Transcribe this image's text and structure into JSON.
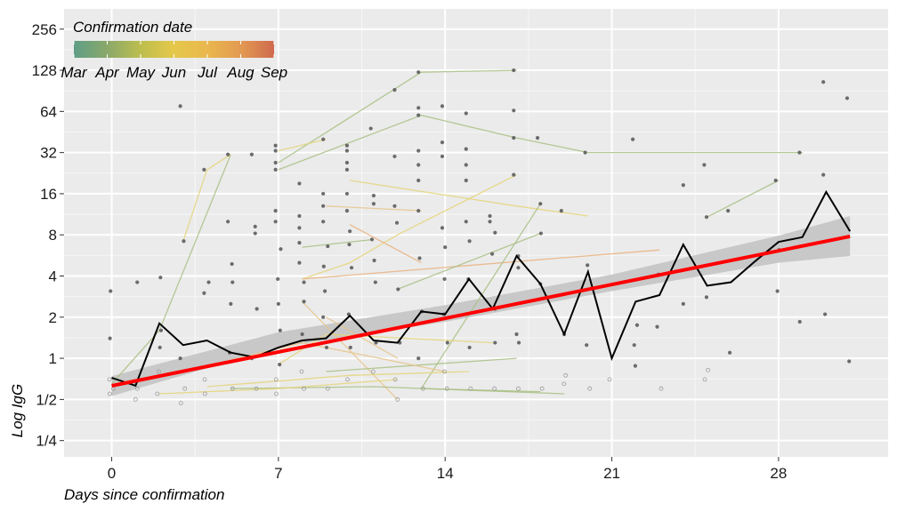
{
  "chart_data": {
    "type": "line",
    "title": "",
    "xlabel": "Days since confirmation",
    "ylabel": "Log IgG",
    "x_ticks": [
      0,
      7,
      14,
      21,
      28
    ],
    "x_tick_labels": [
      "0",
      "7",
      "14",
      "21",
      "28"
    ],
    "xlim": [
      -2,
      32.6
    ],
    "y_scale": "log2",
    "y_ticks": [
      0.25,
      0.5,
      1,
      2,
      4,
      8,
      16,
      32,
      64,
      128,
      256
    ],
    "y_tick_labels": [
      "1/4",
      "1/2",
      "1",
      "2",
      "4",
      "8",
      "16",
      "32",
      "64",
      "128",
      "256"
    ],
    "ylim": [
      0.19,
      360
    ],
    "grid": true,
    "legend": {
      "title": "Confirmation date",
      "placement": "top-left",
      "labels": [
        "Mar",
        "Apr",
        "May",
        "Jun",
        "Jul",
        "Aug",
        "Sep"
      ],
      "colors": [
        "#5e9e86",
        "#8aa86a",
        "#bdbe4e",
        "#e5c84a",
        "#e9b74e",
        "#e39a52",
        "#cf6a4e"
      ]
    },
    "colors": {
      "panel": "#ebebeb",
      "grid": "#ffffff",
      "median_line": "#000000",
      "fit_line": "#ff0000",
      "ci_band": "#c8c8c8",
      "points": "#555555"
    },
    "series": [
      {
        "kind": "median",
        "x": [
          0,
          1,
          2,
          3,
          4,
          5,
          6,
          7,
          8,
          9,
          10,
          11,
          12,
          13,
          14,
          15,
          16,
          17,
          18,
          19,
          20,
          21,
          22,
          23,
          24,
          25,
          26,
          27,
          28,
          29,
          30,
          31
        ],
        "y": [
          0.72,
          0.63,
          1.8,
          1.25,
          1.35,
          1.1,
          1.02,
          1.2,
          1.35,
          1.4,
          2.05,
          1.35,
          1.3,
          2.2,
          2.1,
          3.8,
          2.3,
          5.6,
          3.5,
          1.5,
          4.3,
          1.0,
          2.6,
          2.9,
          6.8,
          3.4,
          3.6,
          5.1,
          7.1,
          7.7,
          16.5,
          8.5
        ]
      },
      {
        "kind": "fit",
        "x": [
          0,
          31
        ],
        "y": [
          0.63,
          7.8
        ]
      },
      {
        "kind": "ci",
        "x": [
          0,
          7,
          14,
          21,
          28,
          31
        ],
        "upper": [
          0.74,
          1.55,
          2.45,
          4.1,
          7.9,
          11.0
        ],
        "lower": [
          0.53,
          1.2,
          1.85,
          3.1,
          5.0,
          5.6
        ]
      }
    ],
    "points": [
      [
        0,
        3.1
      ],
      [
        0,
        1.4
      ],
      [
        0,
        0.7
      ],
      [
        0,
        0.6
      ],
      [
        0,
        0.55
      ],
      [
        1,
        3.6
      ],
      [
        1,
        0.6
      ],
      [
        1,
        0.5
      ],
      [
        2,
        3.9
      ],
      [
        2,
        1.6
      ],
      [
        2,
        1.2
      ],
      [
        2,
        0.8
      ],
      [
        2,
        0.55
      ],
      [
        3,
        70
      ],
      [
        3,
        7.2
      ],
      [
        3,
        1.0
      ],
      [
        3,
        0.6
      ],
      [
        3,
        0.47
      ],
      [
        4,
        24
      ],
      [
        4,
        3.6
      ],
      [
        4,
        3.0
      ],
      [
        4,
        0.7
      ],
      [
        4,
        0.55
      ],
      [
        5,
        31
      ],
      [
        5,
        10
      ],
      [
        5,
        4.9
      ],
      [
        5,
        3.6
      ],
      [
        5,
        2.5
      ],
      [
        5,
        1.1
      ],
      [
        5,
        0.6
      ],
      [
        6,
        31
      ],
      [
        6,
        9.2
      ],
      [
        6,
        8.2
      ],
      [
        6,
        2.3
      ],
      [
        6,
        1.0
      ],
      [
        6,
        0.6
      ],
      [
        7,
        36
      ],
      [
        7,
        33
      ],
      [
        7,
        27
      ],
      [
        7,
        24
      ],
      [
        7,
        12
      ],
      [
        7,
        10
      ],
      [
        7,
        6.3
      ],
      [
        7,
        3.8
      ],
      [
        7,
        2.5
      ],
      [
        7,
        1.6
      ],
      [
        7,
        0.9
      ],
      [
        7,
        0.7
      ],
      [
        7,
        0.55
      ],
      [
        8,
        19
      ],
      [
        8,
        11
      ],
      [
        8,
        9
      ],
      [
        8,
        7
      ],
      [
        8,
        5
      ],
      [
        8,
        3.6
      ],
      [
        8,
        2.6
      ],
      [
        8,
        1.5
      ],
      [
        8,
        0.8
      ],
      [
        8,
        0.6
      ],
      [
        9,
        40
      ],
      [
        9,
        16
      ],
      [
        9,
        13
      ],
      [
        9,
        10
      ],
      [
        9,
        6.6
      ],
      [
        9,
        4.7
      ],
      [
        9,
        3.1
      ],
      [
        9,
        2.0
      ],
      [
        9,
        1.2
      ],
      [
        9,
        0.6
      ],
      [
        10,
        36
      ],
      [
        10,
        33
      ],
      [
        10,
        27
      ],
      [
        10,
        24
      ],
      [
        10,
        16
      ],
      [
        10,
        12
      ],
      [
        10,
        8.5
      ],
      [
        10,
        6.8
      ],
      [
        10,
        4.6
      ],
      [
        10,
        2.1
      ],
      [
        10,
        1.2
      ],
      [
        10,
        0.7
      ],
      [
        11,
        48
      ],
      [
        11,
        15.5
      ],
      [
        11,
        13.5
      ],
      [
        11,
        7.4
      ],
      [
        11,
        5.2
      ],
      [
        11,
        3.6
      ],
      [
        11,
        1.3
      ],
      [
        11,
        0.8
      ],
      [
        12,
        92
      ],
      [
        12,
        30
      ],
      [
        12,
        13
      ],
      [
        12,
        9.8
      ],
      [
        12,
        3.2
      ],
      [
        12,
        1.3
      ],
      [
        12,
        0.7
      ],
      [
        12,
        0.5
      ],
      [
        13,
        124
      ],
      [
        13,
        68
      ],
      [
        13,
        60
      ],
      [
        13,
        33
      ],
      [
        13,
        26
      ],
      [
        13,
        20
      ],
      [
        13,
        12
      ],
      [
        13,
        5.4
      ],
      [
        13,
        2.2
      ],
      [
        13,
        1.0
      ],
      [
        13,
        0.6
      ],
      [
        14,
        70
      ],
      [
        14,
        38
      ],
      [
        14,
        30
      ],
      [
        14,
        9.0
      ],
      [
        14,
        6.5
      ],
      [
        14,
        3.8
      ],
      [
        14,
        2.1
      ],
      [
        14,
        1.3
      ],
      [
        14,
        0.8
      ],
      [
        14,
        0.6
      ],
      [
        15,
        62
      ],
      [
        15,
        34
      ],
      [
        15,
        26
      ],
      [
        15,
        20
      ],
      [
        15,
        10
      ],
      [
        15,
        7.2
      ],
      [
        15,
        3.8
      ],
      [
        15,
        1.2
      ],
      [
        15,
        0.6
      ],
      [
        16,
        11
      ],
      [
        16,
        10
      ],
      [
        16,
        8.3
      ],
      [
        16,
        5.8
      ],
      [
        16,
        2.3
      ],
      [
        16,
        1.3
      ],
      [
        16,
        0.6
      ],
      [
        17,
        128
      ],
      [
        17,
        65
      ],
      [
        17,
        41
      ],
      [
        17,
        22
      ],
      [
        17,
        5.6
      ],
      [
        17,
        4.6
      ],
      [
        17,
        1.5
      ],
      [
        17,
        1.3
      ],
      [
        17,
        0.6
      ],
      [
        18,
        41
      ],
      [
        18,
        13.5
      ],
      [
        18,
        8.2
      ],
      [
        18,
        3.5
      ],
      [
        18,
        0.6
      ],
      [
        19,
        12
      ],
      [
        19,
        1.5
      ],
      [
        19,
        0.75
      ],
      [
        19,
        0.65
      ],
      [
        20,
        32
      ],
      [
        20,
        4.8
      ],
      [
        20,
        1.25
      ],
      [
        20,
        0.6
      ],
      [
        21,
        0.7
      ],
      [
        22,
        40
      ],
      [
        22,
        1.75
      ],
      [
        22,
        1.25
      ],
      [
        22,
        0.88
      ],
      [
        23,
        4.1
      ],
      [
        23,
        1.7
      ],
      [
        23,
        0.6
      ],
      [
        24,
        18.5
      ],
      [
        24,
        2.5
      ],
      [
        25,
        26
      ],
      [
        25,
        10.8
      ],
      [
        25,
        2.8
      ],
      [
        25,
        0.82
      ],
      [
        25,
        0.7
      ],
      [
        26,
        12
      ],
      [
        26,
        1.1
      ],
      [
        28,
        20
      ],
      [
        28,
        6.2
      ],
      [
        28,
        3.1
      ],
      [
        29,
        32
      ],
      [
        29,
        1.85
      ],
      [
        30,
        105
      ],
      [
        30,
        22
      ],
      [
        30,
        2.1
      ],
      [
        31,
        80
      ],
      [
        31,
        0.95
      ]
    ],
    "trajectories": [
      {
        "color": "#a9bf84",
        "points": [
          [
            0,
            0.65
          ],
          [
            2,
            1.6
          ],
          [
            5,
            31
          ]
        ]
      },
      {
        "color": "#e5d57a",
        "points": [
          [
            3,
            7.2
          ],
          [
            4,
            24
          ],
          [
            5,
            31
          ]
        ]
      },
      {
        "color": "#a9bf84",
        "points": [
          [
            7,
            27
          ],
          [
            13,
            124
          ],
          [
            17,
            128
          ]
        ]
      },
      {
        "color": "#a9bf84",
        "points": [
          [
            7,
            24
          ],
          [
            13,
            60
          ],
          [
            17,
            41
          ],
          [
            20,
            32
          ],
          [
            29,
            32
          ]
        ]
      },
      {
        "color": "#e5d57a",
        "points": [
          [
            7,
            33
          ],
          [
            9,
            40
          ]
        ]
      },
      {
        "color": "#e5d57a",
        "points": [
          [
            8,
            3.8
          ],
          [
            10,
            5
          ],
          [
            12,
            8
          ],
          [
            17,
            22
          ]
        ]
      },
      {
        "color": "#e8c48a",
        "points": [
          [
            9,
            13
          ],
          [
            13,
            12
          ]
        ]
      },
      {
        "color": "#e5d57a",
        "points": [
          [
            10,
            20
          ],
          [
            17,
            13
          ],
          [
            20,
            11
          ]
        ]
      },
      {
        "color": "#e9b27e",
        "points": [
          [
            10,
            9.5
          ],
          [
            13,
            5
          ]
        ]
      },
      {
        "color": "#e9b27e",
        "points": [
          [
            8,
            3.8
          ],
          [
            23,
            6.2
          ]
        ]
      },
      {
        "color": "#a9bf84",
        "points": [
          [
            12,
            3.2
          ],
          [
            18,
            8.2
          ]
        ]
      },
      {
        "color": "#a9bf84",
        "points": [
          [
            8,
            6.5
          ],
          [
            11,
            7.4
          ]
        ]
      },
      {
        "color": "#a9bf84",
        "points": [
          [
            13,
            0.6
          ],
          [
            18,
            13.5
          ]
        ]
      },
      {
        "color": "#a9bf84",
        "points": [
          [
            25,
            10.8
          ],
          [
            28,
            20
          ]
        ]
      },
      {
        "color": "#e5d57a",
        "points": [
          [
            7,
            0.9
          ],
          [
            9,
            1.5
          ],
          [
            16,
            1.3
          ]
        ]
      },
      {
        "color": "#e8c48a",
        "points": [
          [
            8,
            2.6
          ],
          [
            12,
            0.5
          ]
        ]
      },
      {
        "color": "#e8c48a",
        "points": [
          [
            9,
            2.0
          ],
          [
            12,
            1.0
          ]
        ]
      },
      {
        "color": "#a9bf84",
        "points": [
          [
            5,
            0.6
          ],
          [
            11,
            0.62
          ],
          [
            19,
            0.55
          ]
        ]
      },
      {
        "color": "#a9bf84",
        "points": [
          [
            13,
            0.6
          ],
          [
            18,
            0.57
          ]
        ]
      },
      {
        "color": "#a9bf84",
        "points": [
          [
            9,
            0.8
          ],
          [
            17,
            1.0
          ]
        ]
      },
      {
        "color": "#e5d57a",
        "points": [
          [
            2,
            0.55
          ],
          [
            7,
            0.6
          ],
          [
            12,
            0.7
          ]
        ]
      },
      {
        "color": "#e8c48a",
        "points": [
          [
            3,
            0.8
          ],
          [
            8,
            1.3
          ],
          [
            14,
            0.8
          ]
        ]
      },
      {
        "color": "#e5d57a",
        "points": [
          [
            4,
            0.62
          ],
          [
            10,
            0.75
          ],
          [
            15,
            0.8
          ]
        ]
      }
    ]
  }
}
